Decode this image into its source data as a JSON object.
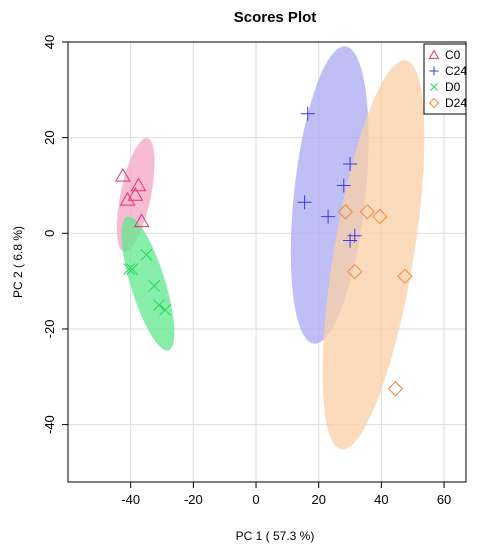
{
  "chart_data": {
    "type": "scatter",
    "title": "Scores Plot",
    "xlabel": "PC 1 ( 57.3 %)",
    "ylabel": "PC 2 ( 6.8 %)",
    "xlim": [
      -60,
      67
    ],
    "ylim": [
      -52,
      40
    ],
    "xticks": [
      -40,
      -20,
      0,
      20,
      40,
      60
    ],
    "yticks": [
      -40,
      -20,
      0,
      20,
      40
    ],
    "grid": true,
    "legend_position": "top-right",
    "series": [
      {
        "name": "C0",
        "marker": "triangle",
        "color": "#e8336f",
        "ellipse_color": "#f4a6c6",
        "ellipse": {
          "cx": -38.4,
          "cy": 8,
          "a": 12.5,
          "b": 4.7,
          "angle_deg": 71
        },
        "points": [
          [
            -42.5,
            12.0
          ],
          [
            -38.5,
            8.0
          ],
          [
            -37.5,
            10.0
          ],
          [
            -41.0,
            7.0
          ],
          [
            -36.5,
            2.5
          ]
        ]
      },
      {
        "name": "C24",
        "marker": "plus",
        "color": "#3a3aea",
        "ellipse_color": "#a9a9f2",
        "ellipse": {
          "cx": 23.5,
          "cy": 8,
          "a": 31.5,
          "b": 11.3,
          "angle_deg": 80
        },
        "points": [
          [
            16.5,
            25.0
          ],
          [
            30.0,
            14.5
          ],
          [
            28.0,
            10.0
          ],
          [
            15.5,
            6.5
          ],
          [
            23.0,
            3.5
          ],
          [
            31.5,
            -0.5
          ],
          [
            30.0,
            -1.5
          ]
        ]
      },
      {
        "name": "D0",
        "marker": "x",
        "color": "#28d852",
        "ellipse_color": "#5fe88d",
        "ellipse": {
          "cx": -34.5,
          "cy": -10.5,
          "a": 15.5,
          "b": 5.2,
          "angle_deg": -63
        },
        "points": [
          [
            -35.0,
            -4.5
          ],
          [
            -40.5,
            -7.5
          ],
          [
            -39.5,
            -7.5
          ],
          [
            -32.5,
            -11.0
          ],
          [
            -31.0,
            -15.0
          ],
          [
            -29.0,
            -16.0
          ]
        ]
      },
      {
        "name": "D24",
        "marker": "diamond",
        "color": "#f08a3a",
        "ellipse_color": "#f9cfa5",
        "ellipse": {
          "cx": 37.5,
          "cy": -4.5,
          "a": 42.0,
          "b": 12.5,
          "angle_deg": 75
        },
        "points": [
          [
            28.5,
            4.5
          ],
          [
            35.5,
            4.5
          ],
          [
            39.5,
            3.5
          ],
          [
            31.5,
            -8.0
          ],
          [
            47.5,
            -9.0
          ],
          [
            44.5,
            -32.5
          ]
        ]
      }
    ]
  }
}
